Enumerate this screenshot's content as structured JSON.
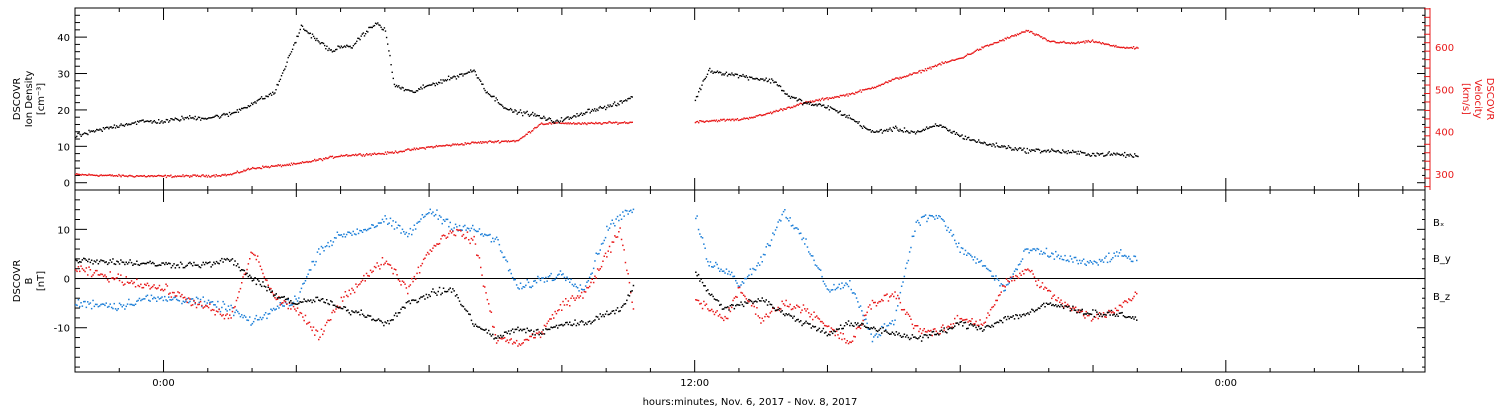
{
  "colors": {
    "axis": "#000000",
    "density": "#000000",
    "velocity": "#e8191a",
    "bx": "#000000",
    "by": "#1d7fd8",
    "bz": "#e8191a"
  },
  "xaxis": {
    "title": "hours:minutes, Nov.  6, 2017 - Nov.  8, 2017",
    "range_hours": [
      -2.0,
      28.5
    ],
    "major_ticks": [
      {
        "hour": 0,
        "label": "0:00"
      },
      {
        "hour": 12,
        "label": "12:00"
      },
      {
        "hour": 24,
        "label": "0:00"
      }
    ]
  },
  "chart_data": [
    {
      "type": "scatter",
      "panel": "plasma",
      "ylabel_left": [
        "DSCOVR",
        "Ion Density",
        "[cm⁻³]"
      ],
      "ylabel_right": [
        "DSCOVR",
        "Velocity",
        "[km/s]"
      ],
      "ylim_left": [
        -2,
        48
      ],
      "ylim_right": [
        262,
        692
      ],
      "yticks_left": [
        0,
        10,
        20,
        30,
        40
      ],
      "yticks_right": [
        300,
        400,
        500,
        600
      ],
      "gaps_hours": [
        [
          10.6,
          12.0
        ]
      ],
      "series": [
        {
          "axis": "left",
          "x": [
            -2.0,
            -1.5,
            -1.0,
            -0.5,
            0.0,
            0.5,
            1.0,
            1.5,
            2.0,
            2.5,
            2.9,
            3.1,
            3.3,
            3.5,
            3.8,
            4.0,
            4.2,
            4.5,
            4.8,
            5.0,
            5.2,
            5.6,
            6.0,
            6.5,
            7.0,
            7.3,
            7.8,
            8.3,
            8.8,
            9.2,
            9.6,
            10.0,
            10.3,
            10.6,
            12.0,
            12.3,
            12.8,
            13.3,
            13.8,
            14.1,
            14.5,
            15.0,
            15.5,
            16.0,
            16.5,
            17.0,
            17.5,
            18.0,
            18.5,
            19.0,
            19.5,
            20.0,
            20.5,
            21.0,
            21.5,
            22.0
          ],
          "y": [
            13,
            14.5,
            16,
            17,
            17,
            18,
            18,
            19,
            22,
            25,
            37,
            43,
            41,
            39,
            36,
            38,
            37,
            41,
            44,
            42,
            27,
            25,
            27,
            29,
            31,
            25,
            20,
            19,
            17,
            18,
            20,
            21,
            22,
            24,
            23,
            31,
            30,
            29,
            28,
            24,
            22,
            21,
            18,
            14,
            15,
            14,
            16,
            13,
            11,
            10,
            9,
            9,
            8.5,
            8,
            8,
            7.5
          ]
        },
        {
          "axis": "right",
          "x": [
            -2.0,
            -1.0,
            0.0,
            1.0,
            1.5,
            2.0,
            3.0,
            4.0,
            5.0,
            6.0,
            7.0,
            7.5,
            8.0,
            8.5,
            9.0,
            9.5,
            10.0,
            10.6,
            12.0,
            12.5,
            13.0,
            13.5,
            14.0,
            14.5,
            15.0,
            15.5,
            16.0,
            16.5,
            17.0,
            17.5,
            18.0,
            18.5,
            19.0,
            19.5,
            20.0,
            20.5,
            21.0,
            21.5,
            22.0
          ],
          "y": [
            300,
            297,
            296,
            297,
            300,
            315,
            325,
            345,
            350,
            365,
            375,
            378,
            380,
            420,
            422,
            420,
            422,
            423,
            425,
            428,
            430,
            440,
            455,
            470,
            480,
            490,
            505,
            525,
            540,
            560,
            575,
            600,
            620,
            640,
            615,
            610,
            615,
            602,
            598
          ]
        }
      ]
    },
    {
      "type": "scatter",
      "panel": "magnetic-field",
      "ylabel_left": [
        "DSCOVR",
        "B",
        "[nT]"
      ],
      "ylim": [
        -19,
        18
      ],
      "yticks": [
        -10,
        0,
        10
      ],
      "zero_line": true,
      "gaps_hours": [
        [
          10.6,
          12.0
        ]
      ],
      "series": [
        {
          "name": "Bₓ",
          "x": [
            -2.0,
            -1.0,
            0.0,
            1.0,
            1.5,
            2.0,
            2.5,
            3.0,
            3.5,
            4.0,
            4.5,
            5.0,
            5.5,
            6.0,
            6.5,
            7.0,
            7.5,
            8.0,
            8.5,
            9.0,
            9.5,
            10.0,
            10.3,
            10.6,
            12.0,
            12.3,
            12.7,
            13.0,
            13.5,
            14.0,
            14.5,
            15.0,
            15.5,
            16.0,
            16.5,
            17.0,
            17.5,
            18.0,
            18.5,
            19.0,
            19.5,
            20.0,
            20.5,
            21.0,
            21.5,
            22.0
          ],
          "y": [
            4,
            3.5,
            3,
            3,
            4,
            0,
            -3,
            -5,
            -4,
            -6,
            -7,
            -9,
            -5,
            -3,
            -2,
            -9,
            -12,
            -10,
            -11,
            -9,
            -9,
            -7,
            -6,
            -2,
            2,
            -3,
            -6,
            -5,
            -4,
            -7,
            -9,
            -11,
            -9,
            -10,
            -11,
            -12,
            -11,
            -9,
            -10,
            -8,
            -7,
            -5,
            -6,
            -7,
            -7,
            -8
          ]
        },
        {
          "name": "B_y",
          "x": [
            -2.0,
            -1.5,
            -1.0,
            -0.5,
            0.0,
            0.5,
            1.0,
            1.5,
            2.0,
            2.5,
            3.0,
            3.5,
            4.0,
            4.5,
            5.0,
            5.5,
            6.0,
            6.5,
            7.0,
            7.5,
            8.0,
            8.5,
            9.0,
            9.5,
            10.0,
            10.3,
            10.6,
            12.0,
            12.3,
            12.7,
            13.0,
            13.5,
            14.0,
            14.5,
            15.0,
            15.5,
            16.0,
            16.5,
            17.0,
            17.5,
            18.0,
            18.5,
            19.0,
            19.5,
            20.0,
            20.5,
            21.0,
            21.5,
            22.0
          ],
          "y": [
            -5,
            -5,
            -5.5,
            -4,
            -4,
            -4,
            -5,
            -6,
            -9,
            -6,
            -4,
            6,
            9,
            10,
            12,
            9,
            14,
            11,
            10,
            8,
            -2,
            0,
            1,
            -2,
            10,
            13,
            14,
            13,
            3,
            2,
            -1,
            4,
            14,
            7,
            -2,
            -1,
            -12,
            -8,
            12,
            13,
            6,
            3,
            -2,
            6,
            5,
            4,
            3,
            5,
            4
          ]
        },
        {
          "name": "B_z",
          "x": [
            -2.0,
            -1.5,
            -1.0,
            -0.5,
            0.0,
            0.5,
            1.0,
            1.5,
            2.0,
            2.5,
            3.0,
            3.5,
            4.0,
            4.5,
            5.0,
            5.5,
            6.0,
            6.5,
            7.0,
            7.5,
            8.0,
            8.5,
            9.0,
            9.5,
            10.0,
            10.3,
            10.6,
            12.0,
            12.3,
            12.7,
            13.0,
            13.5,
            14.0,
            14.5,
            15.0,
            15.5,
            16.0,
            16.5,
            17.0,
            17.5,
            18.0,
            18.5,
            19.0,
            19.5,
            20.0,
            20.5,
            21.0,
            21.5,
            22.0
          ],
          "y": [
            2,
            1,
            0,
            -1,
            -2,
            -4,
            -6,
            -8,
            6,
            -4,
            -6,
            -12,
            -4,
            0,
            4,
            -2,
            6,
            10,
            8,
            -12,
            -13,
            -11,
            -5,
            -3,
            5,
            10,
            -6,
            -4,
            -6,
            -8,
            -2,
            -8,
            -5,
            -6,
            -10,
            -13,
            -5,
            -3,
            -10,
            -11,
            -8,
            -9,
            -1,
            2,
            -3,
            -6,
            -8,
            -6,
            -3
          ]
        }
      ]
    }
  ]
}
